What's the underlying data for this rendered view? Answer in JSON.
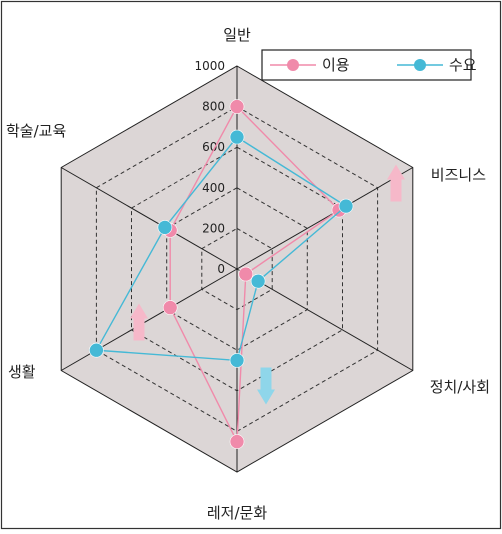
{
  "chart_data": {
    "type": "radar",
    "categories": [
      "일반",
      "비즈니스",
      "정치/사회",
      "레저/문화",
      "생활",
      "학술/교육"
    ],
    "radial_ticks": [
      "0",
      "200",
      "400",
      "600",
      "800",
      "1000"
    ],
    "rmax": 1000,
    "series": [
      {
        "name": "이용",
        "color": "#f08aaa",
        "values": [
          800,
          580,
          50,
          850,
          380,
          380
        ]
      },
      {
        "name": "수요",
        "color": "#45b9d6",
        "values": [
          650,
          620,
          120,
          450,
          800,
          410
        ]
      }
    ],
    "arrows": [
      {
        "axis": "비즈니스",
        "direction": "up",
        "color": "#f6b8c9"
      },
      {
        "axis": "생활",
        "direction": "up",
        "color": "#f6b8c9"
      },
      {
        "axis": "레저/문화",
        "direction": "down",
        "color": "#8fd6ea"
      }
    ],
    "grid": true,
    "legend": "top-right"
  }
}
